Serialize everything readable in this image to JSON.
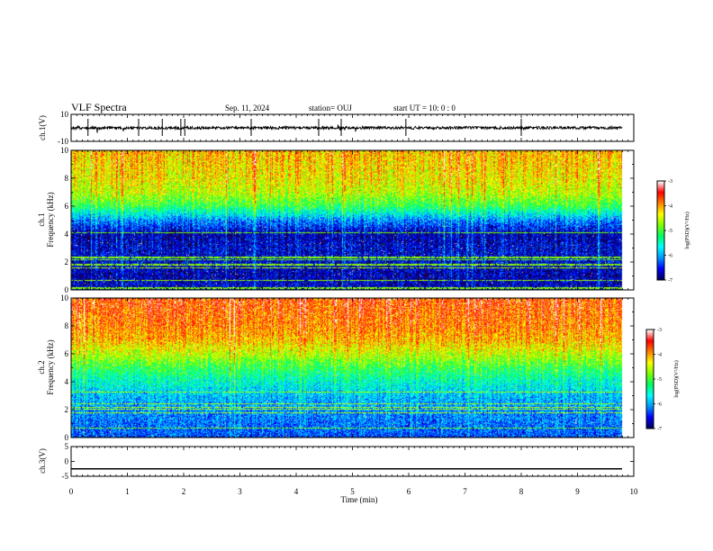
{
  "header": {
    "title": "VLF Spectra",
    "date": "Sep. 11, 2024",
    "station": "station= OUJ",
    "start": "start  UT =   10: 0  : 0"
  },
  "colors": {
    "colormap": [
      "#3a0000",
      "#00005a",
      "#0000ff",
      "#0098ff",
      "#00ffff",
      "#00ff60",
      "#7fff00",
      "#ffff00",
      "#ff8000",
      "#ff0000",
      "#ffffff"
    ]
  },
  "chart_data": [
    {
      "type": "line",
      "panel": "ch1-waveform",
      "ylabel": "ch.1(V)",
      "ylim": [
        -10,
        10
      ],
      "yticks": [
        "10",
        "-10"
      ],
      "xlim": [
        0,
        10
      ],
      "trace_level": 0
    },
    {
      "type": "heatmap",
      "panel": "ch1-spectrogram",
      "ylabel": "ch.1\nFrequency (kHz)",
      "ylabel_lines": [
        "ch.1",
        "Frequency (kHz)"
      ],
      "ylim": [
        0,
        10
      ],
      "yticks": [
        "0",
        "2",
        "4",
        "6",
        "8",
        "10"
      ],
      "xlim": [
        0,
        10
      ],
      "colorbar": {
        "range": [
          -7,
          -3
        ],
        "ticks": [
          "-3",
          "-4",
          "-5",
          "-6",
          "-7"
        ],
        "label": "log(PSD)(V²/Hz)"
      },
      "level_by_frequency_khz": [
        [
          0,
          -6.3
        ],
        [
          1,
          -6.4
        ],
        [
          2,
          -6.3
        ],
        [
          3,
          -6.3
        ],
        [
          4,
          -6.4
        ],
        [
          5,
          -5.8
        ],
        [
          6,
          -4.9
        ],
        [
          7,
          -4.4
        ],
        [
          8,
          -4.2
        ],
        [
          9,
          -4.1
        ],
        [
          10,
          -4.0
        ]
      ]
    },
    {
      "type": "heatmap",
      "panel": "ch2-spectrogram",
      "ylabel": "ch.2\nFrequency (kHz)",
      "ylabel_lines": [
        "ch.2",
        "Frequency (kHz)"
      ],
      "ylim": [
        0,
        10
      ],
      "yticks": [
        "0",
        "2",
        "4",
        "6",
        "8",
        "10"
      ],
      "xlim": [
        0,
        10
      ],
      "colorbar": {
        "range": [
          -7,
          -3
        ],
        "ticks": [
          "-3",
          "-4",
          "-5",
          "-6",
          "-7"
        ],
        "label": "log(PSD)(V²/Hz)"
      },
      "level_by_frequency_khz": [
        [
          0,
          -6.0
        ],
        [
          1,
          -5.9
        ],
        [
          2,
          -5.8
        ],
        [
          3,
          -5.6
        ],
        [
          4,
          -5.3
        ],
        [
          5,
          -4.9
        ],
        [
          6,
          -4.4
        ],
        [
          7,
          -4.0
        ],
        [
          8,
          -3.8
        ],
        [
          9,
          -3.7
        ],
        [
          10,
          -3.6
        ]
      ]
    },
    {
      "type": "line",
      "panel": "ch3-waveform",
      "ylabel": "ch.3(V)",
      "ylim": [
        -5,
        5
      ],
      "yticks": [
        "5",
        "0",
        "-5"
      ],
      "xlim": [
        0,
        10
      ],
      "trace_level": -2.5
    }
  ],
  "xaxis": {
    "label": "Time (min)",
    "ticks": [
      "0",
      "1",
      "2",
      "3",
      "4",
      "5",
      "6",
      "7",
      "8",
      "9",
      "10"
    ]
  }
}
